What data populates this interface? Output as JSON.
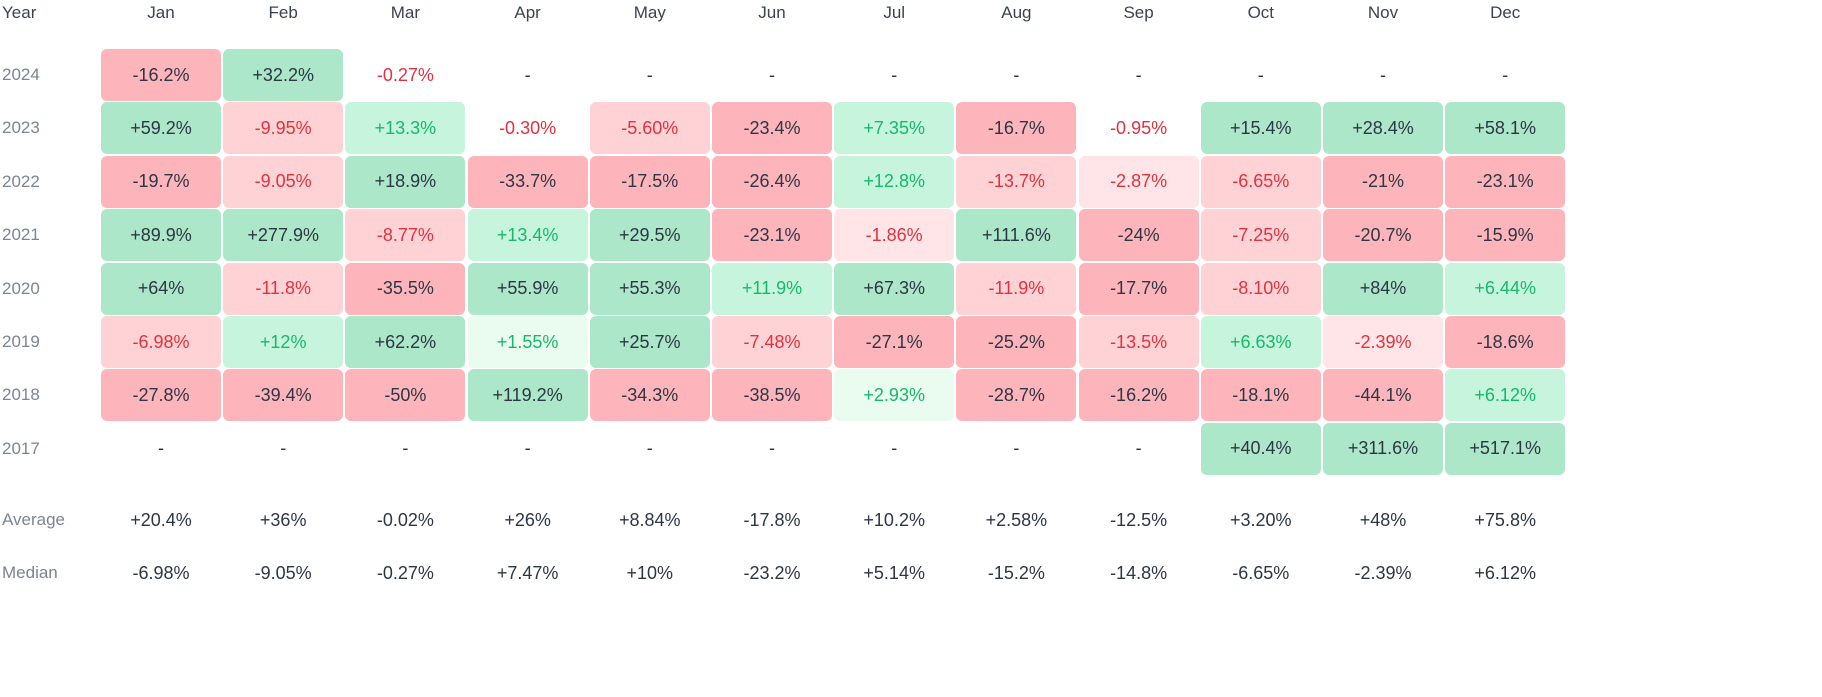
{
  "chart_data": {
    "type": "heatmap",
    "corner_label": "Year",
    "columns": [
      "Jan",
      "Feb",
      "Mar",
      "Apr",
      "May",
      "Jun",
      "Jul",
      "Aug",
      "Sep",
      "Oct",
      "Nov",
      "Dec"
    ],
    "rows": [
      {
        "year": "2024",
        "values": [
          "-16.2%",
          "+32.2%",
          "-0.27%",
          "-",
          "-",
          "-",
          "-",
          "-",
          "-",
          "-",
          "-",
          "-"
        ]
      },
      {
        "year": "2023",
        "values": [
          "+59.2%",
          "-9.95%",
          "+13.3%",
          "-0.30%",
          "-5.60%",
          "-23.4%",
          "+7.35%",
          "-16.7%",
          "-0.95%",
          "+15.4%",
          "+28.4%",
          "+58.1%"
        ]
      },
      {
        "year": "2022",
        "values": [
          "-19.7%",
          "-9.05%",
          "+18.9%",
          "-33.7%",
          "-17.5%",
          "-26.4%",
          "+12.8%",
          "-13.7%",
          "-2.87%",
          "-6.65%",
          "-21%",
          "-23.1%"
        ]
      },
      {
        "year": "2021",
        "values": [
          "+89.9%",
          "+277.9%",
          "-8.77%",
          "+13.4%",
          "+29.5%",
          "-23.1%",
          "-1.86%",
          "+111.6%",
          "-24%",
          "-7.25%",
          "-20.7%",
          "-15.9%"
        ]
      },
      {
        "year": "2020",
        "values": [
          "+64%",
          "-11.8%",
          "-35.5%",
          "+55.9%",
          "+55.3%",
          "+11.9%",
          "+67.3%",
          "-11.9%",
          "-17.7%",
          "-8.10%",
          "+84%",
          "+6.44%"
        ]
      },
      {
        "year": "2019",
        "values": [
          "-6.98%",
          "+12%",
          "+62.2%",
          "+1.55%",
          "+25.7%",
          "-7.48%",
          "-27.1%",
          "-25.2%",
          "-13.5%",
          "+6.63%",
          "-2.39%",
          "-18.6%"
        ]
      },
      {
        "year": "2018",
        "values": [
          "-27.8%",
          "-39.4%",
          "-50%",
          "+119.2%",
          "-34.3%",
          "-38.5%",
          "+2.93%",
          "-28.7%",
          "-16.2%",
          "-18.1%",
          "-44.1%",
          "+6.12%"
        ]
      },
      {
        "year": "2017",
        "values": [
          "-",
          "-",
          "-",
          "-",
          "-",
          "-",
          "-",
          "-",
          "-",
          "+40.4%",
          "+311.6%",
          "+517.1%"
        ]
      }
    ],
    "summary": [
      {
        "label": "Average",
        "values": [
          "+20.4%",
          "+36%",
          "-0.02%",
          "+26%",
          "+8.84%",
          "-17.8%",
          "+10.2%",
          "+2.58%",
          "-12.5%",
          "+3.20%",
          "+48%",
          "+75.8%"
        ]
      },
      {
        "label": "Median",
        "values": [
          "-6.98%",
          "-9.05%",
          "-0.27%",
          "+7.47%",
          "+10%",
          "-23.2%",
          "+5.14%",
          "-15.2%",
          "-14.8%",
          "-6.65%",
          "-2.39%",
          "+6.12%"
        ]
      }
    ]
  },
  "colors": {
    "strong_positive_bg": "#abe7c8",
    "medium_positive_bg": "#c7f4dc",
    "light_positive_bg": "#e9fcef",
    "strong_negative_bg": "#fdb5bb",
    "medium_negative_bg": "#ffd2d6",
    "light_negative_bg": "#ffe5e7",
    "dark_text": "#2d3643",
    "green_text": "#16b96a",
    "red_text": "#e2323e",
    "muted_label": "#7b8593",
    "header_text": "#3a4352"
  }
}
